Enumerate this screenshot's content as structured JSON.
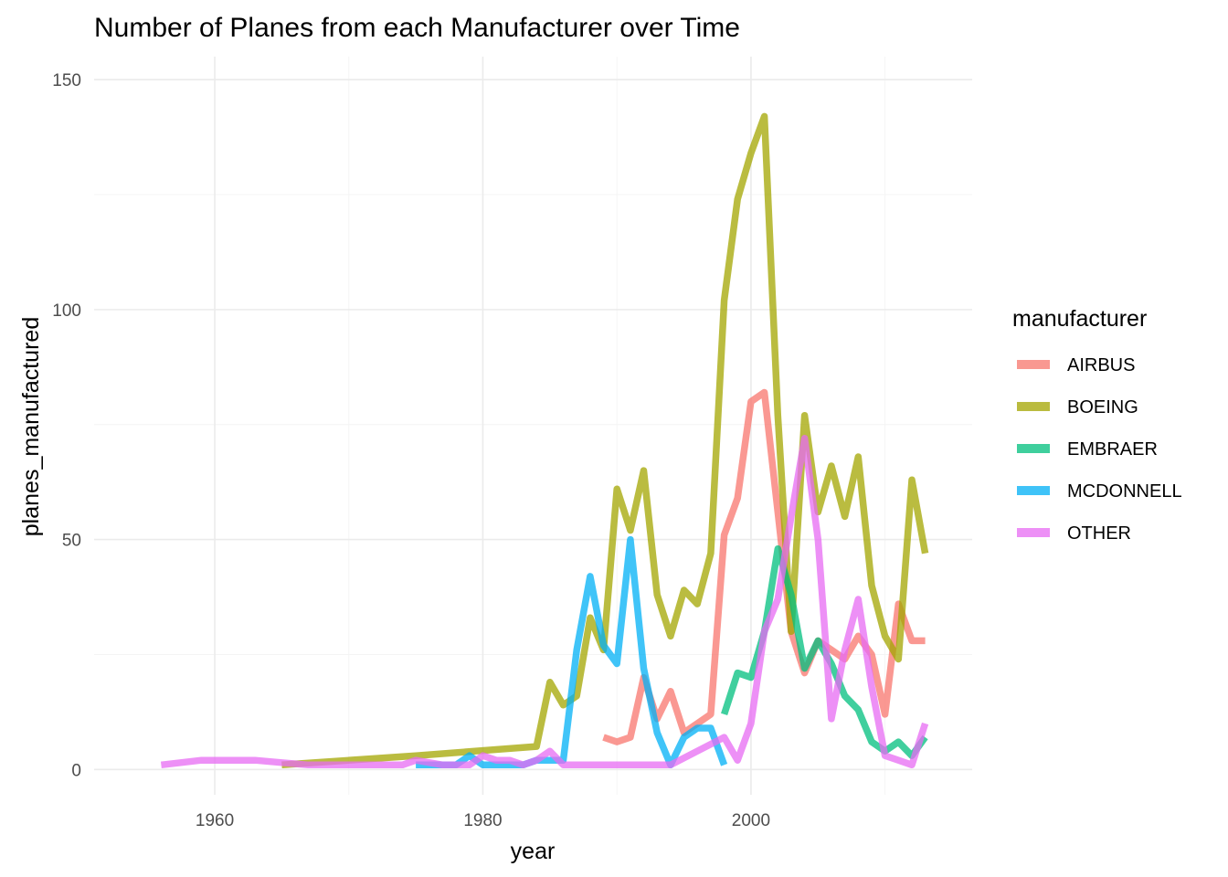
{
  "chart_data": {
    "type": "line",
    "title": "Number of Planes from each Manufacturer over Time",
    "xlabel": "year",
    "ylabel": "planes_manufactured",
    "xlim": [
      1951,
      2016.5
    ],
    "ylim": [
      -5.5,
      155
    ],
    "x_ticks": [
      1960,
      1980,
      2000
    ],
    "y_ticks": [
      0,
      50,
      100,
      150
    ],
    "grid": true,
    "legend": {
      "title": "manufacturer",
      "position": "right"
    },
    "series": [
      {
        "name": "AIRBUS",
        "color": "#F8766D",
        "points": [
          [
            1989,
            7
          ],
          [
            1990,
            6
          ],
          [
            1991,
            7
          ],
          [
            1992,
            20
          ],
          [
            1993,
            11
          ],
          [
            1994,
            17
          ],
          [
            1995,
            8
          ],
          [
            1996,
            10
          ],
          [
            1997,
            12
          ],
          [
            1998,
            51
          ],
          [
            1999,
            59
          ],
          [
            2000,
            80
          ],
          [
            2001,
            82
          ],
          [
            2002,
            56
          ],
          [
            2003,
            30
          ],
          [
            2004,
            21
          ],
          [
            2005,
            28
          ],
          [
            2006,
            26
          ],
          [
            2007,
            24
          ],
          [
            2008,
            29
          ],
          [
            2009,
            25
          ],
          [
            2010,
            12
          ],
          [
            2011,
            36
          ],
          [
            2012,
            28
          ],
          [
            2013,
            28
          ]
        ]
      },
      {
        "name": "BOEING",
        "color": "#A3A500",
        "points": [
          [
            1965,
            1
          ],
          [
            1975,
            3
          ],
          [
            1984,
            5
          ],
          [
            1985,
            19
          ],
          [
            1986,
            14
          ],
          [
            1987,
            16
          ],
          [
            1988,
            33
          ],
          [
            1989,
            26
          ],
          [
            1990,
            61
          ],
          [
            1991,
            52
          ],
          [
            1992,
            65
          ],
          [
            1993,
            38
          ],
          [
            1994,
            29
          ],
          [
            1995,
            39
          ],
          [
            1996,
            36
          ],
          [
            1997,
            47
          ],
          [
            1998,
            102
          ],
          [
            1999,
            124
          ],
          [
            2000,
            134
          ],
          [
            2001,
            142
          ],
          [
            2002,
            77
          ],
          [
            2003,
            30
          ],
          [
            2004,
            77
          ],
          [
            2005,
            56
          ],
          [
            2006,
            66
          ],
          [
            2007,
            55
          ],
          [
            2008,
            68
          ],
          [
            2009,
            40
          ],
          [
            2010,
            29
          ],
          [
            2011,
            24
          ],
          [
            2012,
            63
          ],
          [
            2013,
            47
          ]
        ]
      },
      {
        "name": "EMBRAER",
        "color": "#00BF7D",
        "points": [
          [
            1998,
            12
          ],
          [
            1999,
            21
          ],
          [
            2000,
            20
          ],
          [
            2001,
            30
          ],
          [
            2002,
            48
          ],
          [
            2003,
            38
          ],
          [
            2004,
            22
          ],
          [
            2005,
            28
          ],
          [
            2006,
            23
          ],
          [
            2007,
            16
          ],
          [
            2008,
            13
          ],
          [
            2009,
            6
          ],
          [
            2010,
            4
          ],
          [
            2011,
            6
          ],
          [
            2012,
            3
          ],
          [
            2013,
            7
          ]
        ]
      },
      {
        "name": "MCDONNELL",
        "color": "#00B0F6",
        "points": [
          [
            1975,
            1
          ],
          [
            1976,
            1
          ],
          [
            1977,
            1
          ],
          [
            1978,
            1
          ],
          [
            1979,
            3
          ],
          [
            1980,
            1
          ],
          [
            1981,
            1
          ],
          [
            1982,
            1
          ],
          [
            1983,
            1
          ],
          [
            1984,
            2
          ],
          [
            1985,
            2
          ],
          [
            1986,
            2
          ],
          [
            1987,
            26
          ],
          [
            1988,
            42
          ],
          [
            1989,
            27
          ],
          [
            1990,
            23
          ],
          [
            1991,
            50
          ],
          [
            1992,
            22
          ],
          [
            1993,
            8
          ],
          [
            1994,
            1
          ],
          [
            1995,
            7
          ],
          [
            1996,
            9
          ],
          [
            1997,
            9
          ],
          [
            1998,
            1
          ]
        ]
      },
      {
        "name": "OTHER",
        "color": "#E76BF3",
        "points": [
          [
            1956,
            1
          ],
          [
            1959,
            2
          ],
          [
            1963,
            2
          ],
          [
            1965,
            1.5
          ],
          [
            1967,
            1
          ],
          [
            1974,
            1
          ],
          [
            1975,
            2
          ],
          [
            1977,
            1
          ],
          [
            1978,
            1
          ],
          [
            1979,
            1
          ],
          [
            1980,
            3
          ],
          [
            1981,
            2
          ],
          [
            1982,
            2
          ],
          [
            1983,
            1
          ],
          [
            1984,
            2
          ],
          [
            1985,
            4
          ],
          [
            1986,
            1
          ],
          [
            1990,
            1
          ],
          [
            1994,
            1
          ],
          [
            1996,
            4
          ],
          [
            1998,
            7
          ],
          [
            1999,
            2
          ],
          [
            2000,
            10
          ],
          [
            2001,
            30
          ],
          [
            2002,
            37
          ],
          [
            2003,
            55
          ],
          [
            2004,
            72
          ],
          [
            2005,
            50
          ],
          [
            2006,
            11
          ],
          [
            2007,
            26
          ],
          [
            2008,
            37
          ],
          [
            2009,
            18
          ],
          [
            2010,
            3
          ],
          [
            2011,
            2
          ],
          [
            2012,
            1
          ],
          [
            2013,
            10
          ]
        ]
      }
    ]
  }
}
